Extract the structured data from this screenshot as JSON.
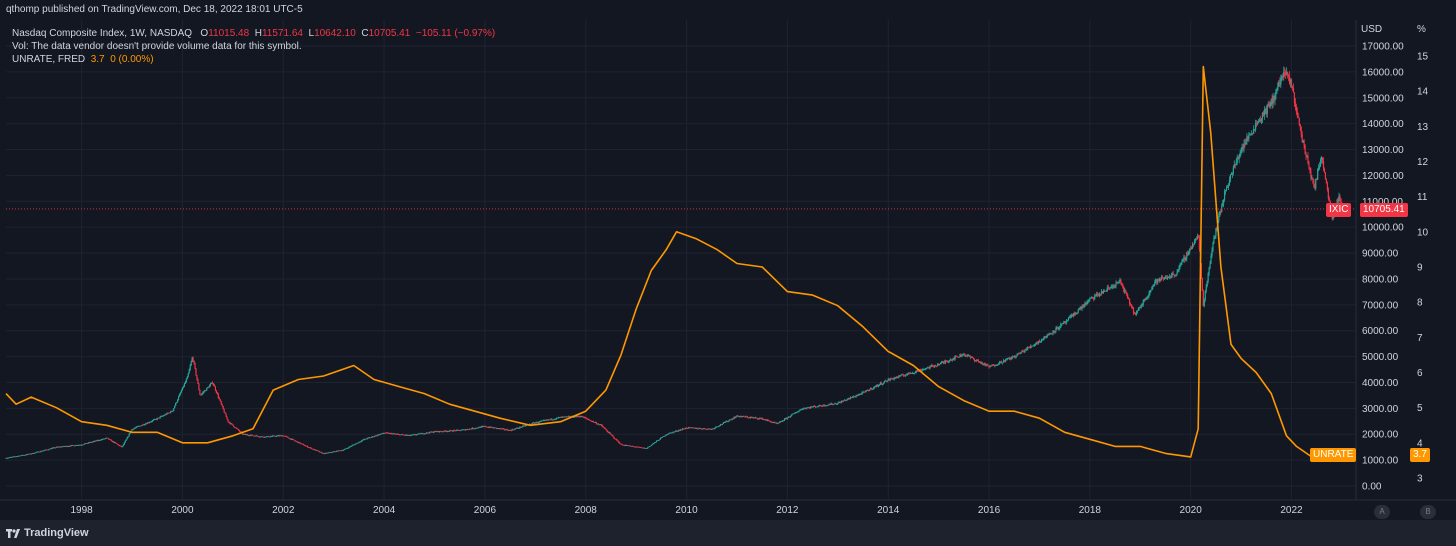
{
  "header": {
    "published": "qthomp published on TradingView.com, Dec 18, 2022 18:01 UTC-5"
  },
  "legend": {
    "symbol": "Nasdaq Composite Index, 1W, NASDAQ",
    "o_label": "O",
    "o_value": "11015.48",
    "h_label": "H",
    "h_value": "11571.64",
    "l_label": "L",
    "l_value": "10642.10",
    "c_label": "C",
    "c_value": "10705.41",
    "change": "−105.11 (−0.97%)",
    "vol_note": "Vol: The data vendor doesn't provide volume data for this symbol.",
    "unrate_label": "UNRATE, FRED",
    "unrate_value": "3.7",
    "unrate_change": "0 (0.00%)"
  },
  "axis": {
    "usd_label": "USD",
    "pct_label": "%",
    "usd_ticks": [
      "17000.00",
      "16000.00",
      "15000.00",
      "14000.00",
      "13000.00",
      "12000.00",
      "11000.00",
      "10000.00",
      "9000.00",
      "8000.00",
      "7000.00",
      "6000.00",
      "5000.00",
      "4000.00",
      "3000.00",
      "2000.00",
      "1000.00",
      "0.00"
    ],
    "pct_ticks": [
      "15",
      "14",
      "13",
      "12",
      "11",
      "10",
      "9",
      "8",
      "7",
      "6",
      "5",
      "4",
      "3"
    ],
    "year_ticks": [
      "1998",
      "2000",
      "2002",
      "2004",
      "2006",
      "2008",
      "2010",
      "2012",
      "2014",
      "2016",
      "2018",
      "2020",
      "2022"
    ]
  },
  "tags": {
    "ixic_name": "IXIC",
    "ixic_price": "10705.41",
    "unrate_name": "UNRATE",
    "unrate_value": "3.7"
  },
  "buttons": {
    "a": "A",
    "b": "B"
  },
  "footer": {
    "brand": "TradingView"
  },
  "colors": {
    "background": "#131722",
    "up": "#26a69a",
    "down": "#f23645",
    "unrate": "#ff9800",
    "grid": "#1f2330"
  },
  "chart_data": {
    "type": "line",
    "title": "Nasdaq Composite Index, 1W, NASDAQ",
    "grid": true,
    "x_range": [
      1996.5,
      2023.2
    ],
    "series": [
      {
        "name": "Nasdaq Composite Index",
        "axis": "USD",
        "ylim": [
          0,
          17000
        ],
        "points": [
          [
            1996.5,
            1080
          ],
          [
            1997.0,
            1250
          ],
          [
            1997.5,
            1500
          ],
          [
            1998.0,
            1600
          ],
          [
            1998.5,
            1850
          ],
          [
            1998.8,
            1500
          ],
          [
            1999.0,
            2200
          ],
          [
            1999.5,
            2600
          ],
          [
            1999.8,
            2900
          ],
          [
            2000.1,
            4200
          ],
          [
            2000.2,
            5000
          ],
          [
            2000.35,
            3500
          ],
          [
            2000.6,
            4000
          ],
          [
            2000.9,
            2500
          ],
          [
            2001.2,
            2000
          ],
          [
            2001.6,
            1900
          ],
          [
            2002.0,
            1950
          ],
          [
            2002.5,
            1500
          ],
          [
            2002.8,
            1250
          ],
          [
            2003.2,
            1400
          ],
          [
            2003.6,
            1800
          ],
          [
            2004.0,
            2050
          ],
          [
            2004.5,
            1950
          ],
          [
            2005.0,
            2100
          ],
          [
            2005.5,
            2150
          ],
          [
            2006.0,
            2300
          ],
          [
            2006.5,
            2150
          ],
          [
            2007.0,
            2450
          ],
          [
            2007.5,
            2650
          ],
          [
            2007.9,
            2700
          ],
          [
            2008.3,
            2350
          ],
          [
            2008.7,
            1600
          ],
          [
            2009.2,
            1450
          ],
          [
            2009.6,
            2000
          ],
          [
            2010.0,
            2250
          ],
          [
            2010.5,
            2200
          ],
          [
            2011.0,
            2700
          ],
          [
            2011.5,
            2600
          ],
          [
            2011.8,
            2400
          ],
          [
            2012.3,
            3000
          ],
          [
            2013.0,
            3200
          ],
          [
            2013.5,
            3600
          ],
          [
            2014.0,
            4100
          ],
          [
            2014.5,
            4400
          ],
          [
            2015.0,
            4700
          ],
          [
            2015.5,
            5100
          ],
          [
            2016.0,
            4600
          ],
          [
            2016.5,
            5000
          ],
          [
            2017.0,
            5600
          ],
          [
            2017.5,
            6300
          ],
          [
            2018.0,
            7200
          ],
          [
            2018.6,
            7900
          ],
          [
            2018.9,
            6600
          ],
          [
            2019.3,
            7900
          ],
          [
            2019.7,
            8200
          ],
          [
            2020.0,
            9200
          ],
          [
            2020.15,
            9700
          ],
          [
            2020.25,
            7000
          ],
          [
            2020.45,
            9500
          ],
          [
            2020.7,
            11500
          ],
          [
            2021.0,
            13000
          ],
          [
            2021.3,
            14000
          ],
          [
            2021.6,
            14800
          ],
          [
            2021.85,
            16000
          ],
          [
            2022.0,
            15500
          ],
          [
            2022.2,
            13500
          ],
          [
            2022.45,
            11500
          ],
          [
            2022.6,
            12800
          ],
          [
            2022.8,
            10400
          ],
          [
            2022.95,
            11200
          ],
          [
            2023.0,
            10705
          ]
        ]
      },
      {
        "name": "UNRATE, FRED",
        "axis": "%",
        "ylim": [
          2.1,
          15.5
        ],
        "points": [
          [
            1996.5,
            5.4
          ],
          [
            1996.7,
            5.1
          ],
          [
            1997.0,
            5.3
          ],
          [
            1997.5,
            5.0
          ],
          [
            1998.0,
            4.6
          ],
          [
            1998.5,
            4.5
          ],
          [
            1999.0,
            4.3
          ],
          [
            1999.5,
            4.3
          ],
          [
            2000.0,
            4.0
          ],
          [
            2000.5,
            4.0
          ],
          [
            2001.0,
            4.2
          ],
          [
            2001.4,
            4.4
          ],
          [
            2001.8,
            5.5
          ],
          [
            2002.3,
            5.8
          ],
          [
            2002.8,
            5.9
          ],
          [
            2003.4,
            6.2
          ],
          [
            2003.8,
            5.8
          ],
          [
            2004.3,
            5.6
          ],
          [
            2004.8,
            5.4
          ],
          [
            2005.3,
            5.1
          ],
          [
            2005.8,
            4.9
          ],
          [
            2006.3,
            4.7
          ],
          [
            2006.9,
            4.5
          ],
          [
            2007.5,
            4.6
          ],
          [
            2008.0,
            4.9
          ],
          [
            2008.4,
            5.5
          ],
          [
            2008.7,
            6.5
          ],
          [
            2009.0,
            7.8
          ],
          [
            2009.3,
            8.9
          ],
          [
            2009.6,
            9.5
          ],
          [
            2009.8,
            10.0
          ],
          [
            2010.2,
            9.8
          ],
          [
            2010.6,
            9.5
          ],
          [
            2011.0,
            9.1
          ],
          [
            2011.5,
            9.0
          ],
          [
            2012.0,
            8.3
          ],
          [
            2012.5,
            8.2
          ],
          [
            2013.0,
            7.9
          ],
          [
            2013.5,
            7.3
          ],
          [
            2014.0,
            6.6
          ],
          [
            2014.5,
            6.2
          ],
          [
            2015.0,
            5.6
          ],
          [
            2015.5,
            5.2
          ],
          [
            2016.0,
            4.9
          ],
          [
            2016.5,
            4.9
          ],
          [
            2017.0,
            4.7
          ],
          [
            2017.5,
            4.3
          ],
          [
            2018.0,
            4.1
          ],
          [
            2018.5,
            3.9
          ],
          [
            2019.0,
            3.9
          ],
          [
            2019.5,
            3.7
          ],
          [
            2020.0,
            3.6
          ],
          [
            2020.15,
            4.4
          ],
          [
            2020.25,
            14.7
          ],
          [
            2020.4,
            12.8
          ],
          [
            2020.6,
            9.0
          ],
          [
            2020.8,
            6.8
          ],
          [
            2021.0,
            6.4
          ],
          [
            2021.3,
            6.0
          ],
          [
            2021.6,
            5.4
          ],
          [
            2021.9,
            4.2
          ],
          [
            2022.1,
            3.9
          ],
          [
            2022.4,
            3.6
          ],
          [
            2022.7,
            3.6
          ],
          [
            2022.8,
            3.5
          ],
          [
            2022.9,
            3.7
          ],
          [
            2023.0,
            3.7
          ]
        ]
      }
    ]
  }
}
